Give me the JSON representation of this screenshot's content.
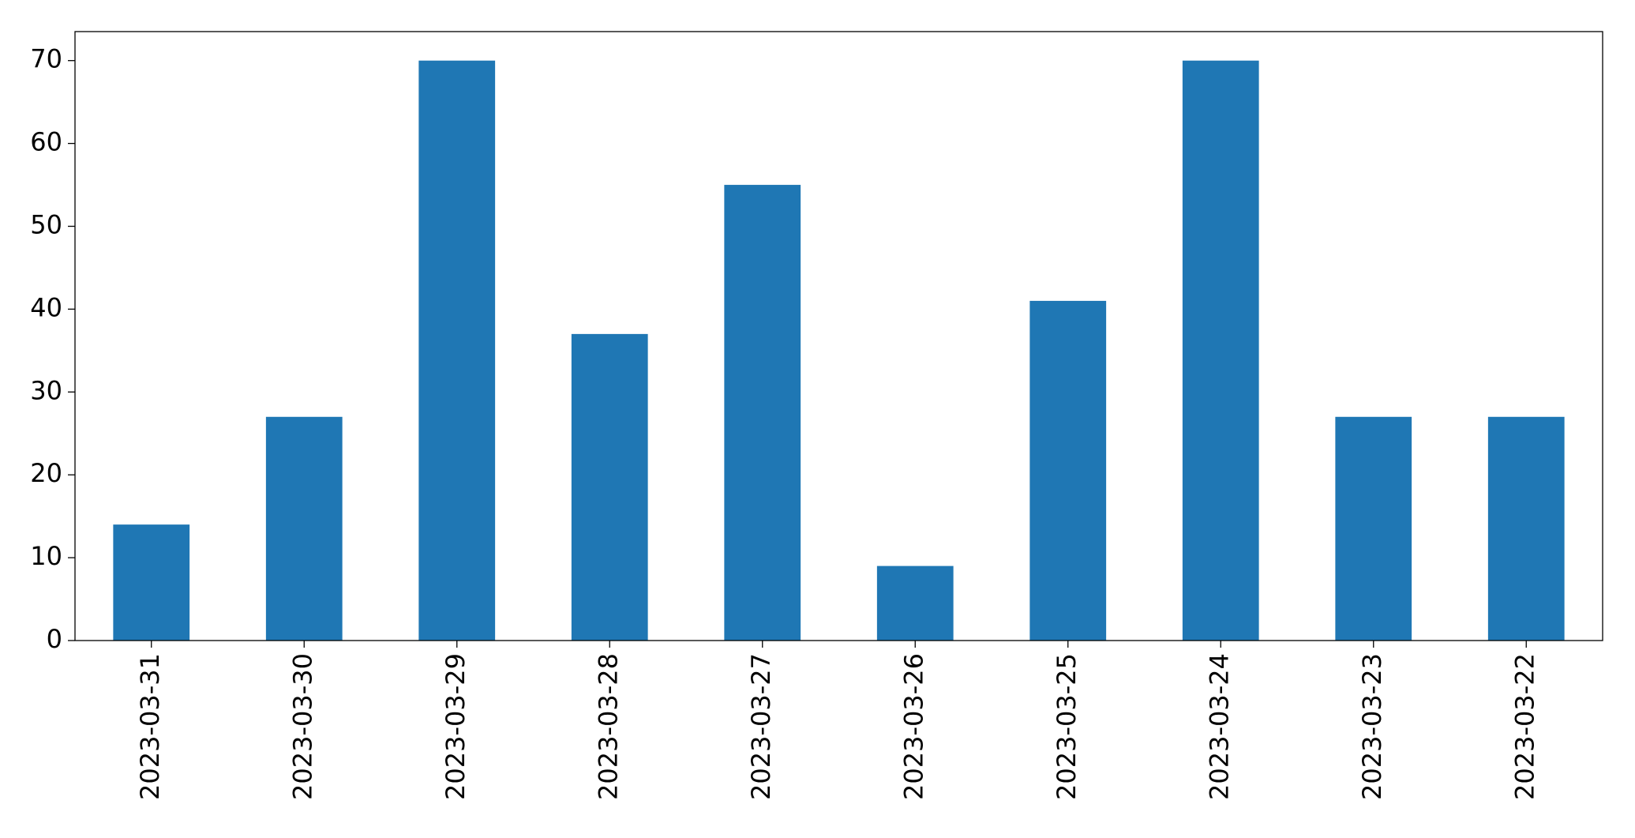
{
  "chart_data": {
    "type": "bar",
    "categories": [
      "2023-03-31",
      "2023-03-30",
      "2023-03-29",
      "2023-03-28",
      "2023-03-27",
      "2023-03-26",
      "2023-03-25",
      "2023-03-24",
      "2023-03-23",
      "2023-03-22"
    ],
    "values": [
      14,
      27,
      70,
      37,
      55,
      9,
      41,
      70,
      27,
      27
    ],
    "color": "#1f77b4",
    "ylim": [
      0,
      73.5
    ],
    "yticks": [
      0,
      10,
      20,
      30,
      40,
      50,
      60,
      70
    ],
    "grid": false
  }
}
